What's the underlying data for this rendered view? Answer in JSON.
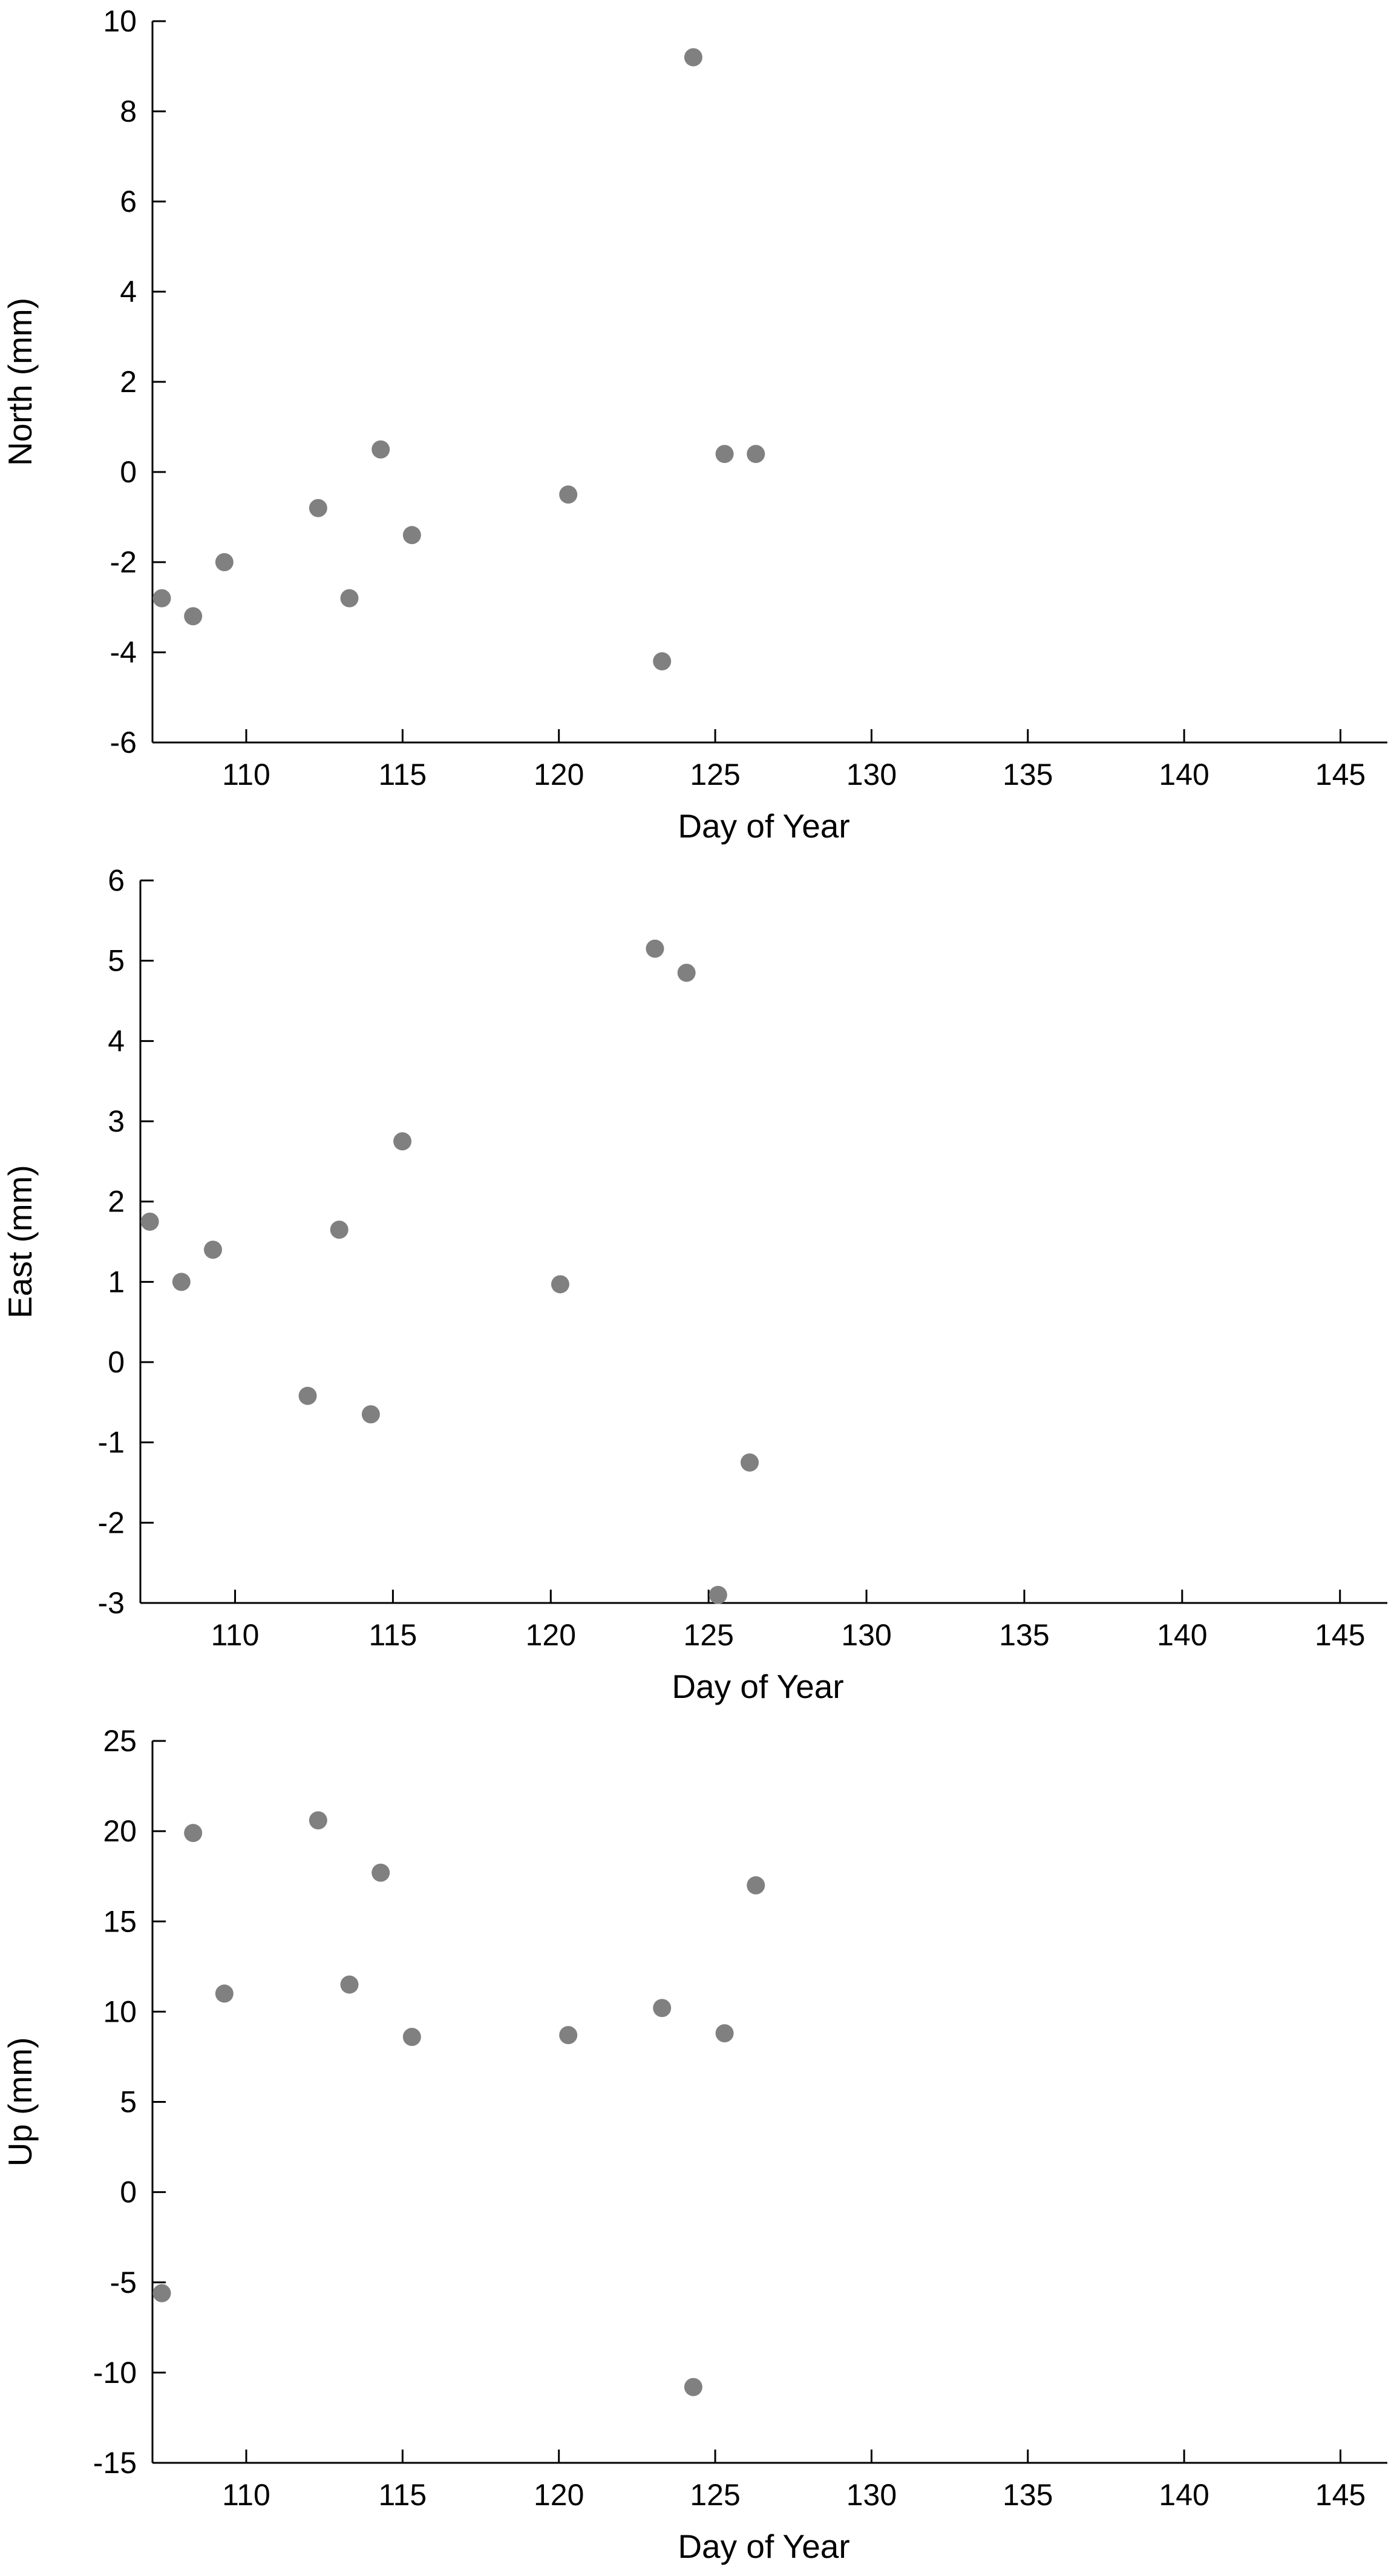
{
  "chart_data": [
    {
      "type": "scatter",
      "xlabel": "Day of Year",
      "ylabel": "North (mm)",
      "xlim": [
        107,
        146.5
      ],
      "ylim": [
        -6,
        10
      ],
      "x_ticks": [
        110,
        115,
        120,
        125,
        130,
        135,
        140,
        145
      ],
      "y_ticks": [
        -6,
        -4,
        -2,
        0,
        2,
        4,
        6,
        8,
        10
      ],
      "grid": false,
      "marker_color": "#808080",
      "points": [
        {
          "x": 107.3,
          "y": -2.8
        },
        {
          "x": 108.3,
          "y": -3.2
        },
        {
          "x": 109.3,
          "y": -2.0
        },
        {
          "x": 112.3,
          "y": -0.8
        },
        {
          "x": 113.3,
          "y": -2.8
        },
        {
          "x": 114.3,
          "y": 0.5
        },
        {
          "x": 115.3,
          "y": -1.4
        },
        {
          "x": 120.3,
          "y": -0.5
        },
        {
          "x": 123.3,
          "y": -4.2
        },
        {
          "x": 124.3,
          "y": 9.2
        },
        {
          "x": 125.3,
          "y": 0.4
        },
        {
          "x": 126.3,
          "y": 0.4
        }
      ]
    },
    {
      "type": "scatter",
      "xlabel": "Day of Year",
      "ylabel": "East (mm)",
      "xlim": [
        107,
        146.5
      ],
      "ylim": [
        -3,
        6
      ],
      "x_ticks": [
        110,
        115,
        120,
        125,
        130,
        135,
        140,
        145
      ],
      "y_ticks": [
        -3,
        -2,
        -1,
        0,
        1,
        2,
        3,
        4,
        5,
        6
      ],
      "grid": false,
      "marker_color": "#808080",
      "points": [
        {
          "x": 107.3,
          "y": 1.75
        },
        {
          "x": 108.3,
          "y": 1.0
        },
        {
          "x": 109.3,
          "y": 1.4
        },
        {
          "x": 112.3,
          "y": -0.42
        },
        {
          "x": 113.3,
          "y": 1.65
        },
        {
          "x": 114.3,
          "y": -0.65
        },
        {
          "x": 115.3,
          "y": 2.75
        },
        {
          "x": 120.3,
          "y": 0.97
        },
        {
          "x": 123.3,
          "y": 5.15
        },
        {
          "x": 124.3,
          "y": 4.85
        },
        {
          "x": 125.3,
          "y": -2.9
        },
        {
          "x": 126.3,
          "y": -1.25
        }
      ]
    },
    {
      "type": "scatter",
      "xlabel": "Day of Year",
      "ylabel": "Up (mm)",
      "xlim": [
        107,
        146.5
      ],
      "ylim": [
        -15,
        25
      ],
      "x_ticks": [
        110,
        115,
        120,
        125,
        130,
        135,
        140,
        145
      ],
      "y_ticks": [
        -15,
        -10,
        -5,
        0,
        5,
        10,
        15,
        20,
        25
      ],
      "grid": false,
      "marker_color": "#808080",
      "points": [
        {
          "x": 107.3,
          "y": -5.6
        },
        {
          "x": 108.3,
          "y": 19.9
        },
        {
          "x": 109.3,
          "y": 11.0
        },
        {
          "x": 112.3,
          "y": 20.6
        },
        {
          "x": 113.3,
          "y": 11.5
        },
        {
          "x": 114.3,
          "y": 17.7
        },
        {
          "x": 115.3,
          "y": 8.6
        },
        {
          "x": 120.3,
          "y": 8.7
        },
        {
          "x": 123.3,
          "y": 10.2
        },
        {
          "x": 124.3,
          "y": -10.8
        },
        {
          "x": 125.3,
          "y": 8.8
        },
        {
          "x": 126.3,
          "y": 17.0
        }
      ]
    }
  ]
}
